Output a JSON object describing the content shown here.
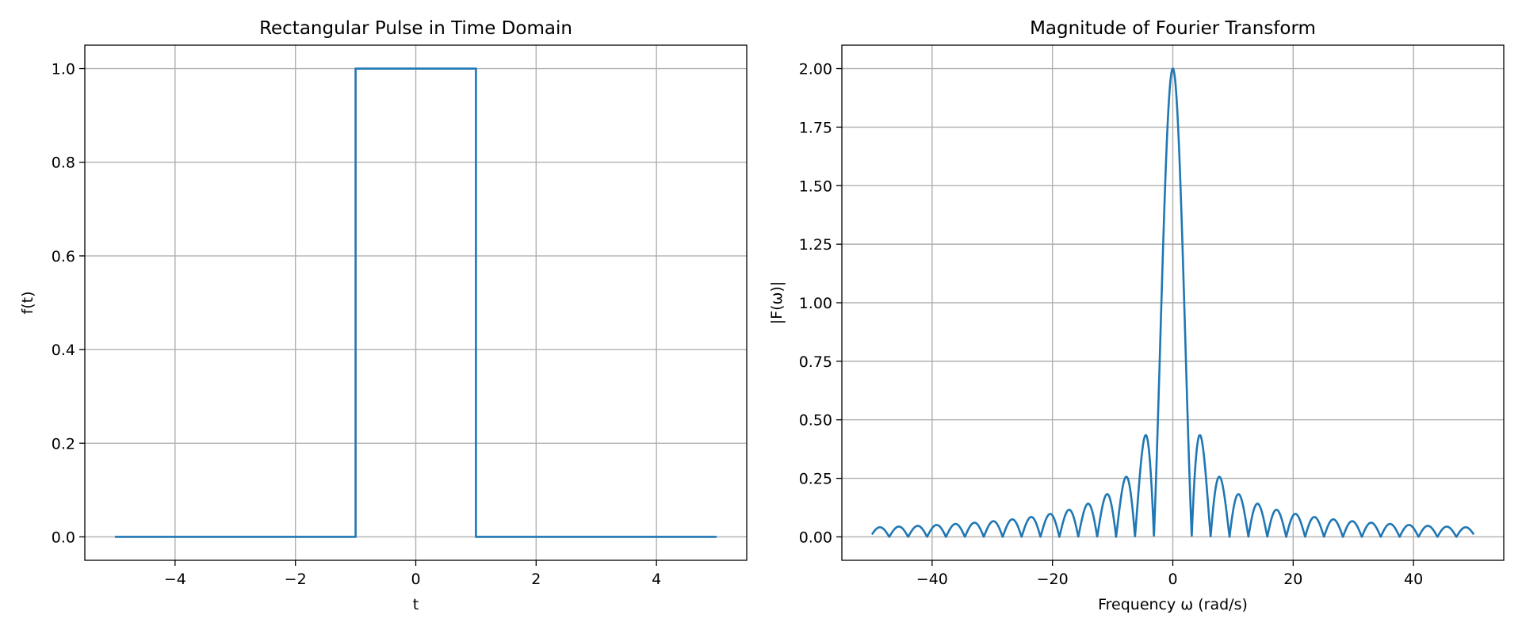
{
  "colors": {
    "series": "#1f77b4"
  },
  "chart_data": [
    {
      "type": "line",
      "title": "Rectangular Pulse in Time Domain",
      "xlabel": "t",
      "ylabel": "f(t)",
      "xlim": [
        -5.5,
        5.5
      ],
      "ylim": [
        -0.05,
        1.05
      ],
      "xticks": [
        -4,
        -2,
        0,
        2,
        4
      ],
      "xtick_labels": [
        "−4",
        "−2",
        "0",
        "2",
        "4"
      ],
      "yticks": [
        0.0,
        0.2,
        0.4,
        0.6,
        0.8,
        1.0
      ],
      "ytick_labels": [
        "0.0",
        "0.2",
        "0.4",
        "0.6",
        "0.8",
        "1.0"
      ],
      "grid": true,
      "series": [
        {
          "x": [
            -5,
            -1,
            -1,
            1,
            1,
            5
          ],
          "y": [
            0,
            0,
            1,
            1,
            0,
            0
          ]
        }
      ]
    },
    {
      "type": "line",
      "title": "Magnitude of Fourier Transform",
      "xlabel": "Frequency ω (rad/s)",
      "ylabel": "|F(ω)|",
      "xlim": [
        -55,
        55
      ],
      "ylim": [
        -0.1,
        2.1
      ],
      "xticks": [
        -40,
        -20,
        0,
        20,
        40
      ],
      "xtick_labels": [
        "−40",
        "−20",
        "0",
        "20",
        "40"
      ],
      "yticks": [
        0.0,
        0.25,
        0.5,
        0.75,
        1.0,
        1.25,
        1.5,
        1.75,
        2.0
      ],
      "ytick_labels": [
        "0.00",
        "0.25",
        "0.50",
        "0.75",
        "1.00",
        "1.25",
        "1.50",
        "1.75",
        "2.00"
      ],
      "grid": true,
      "series": [
        {
          "function": "|2 sin(ω)/ω|",
          "x_range": [
            -50,
            50
          ]
        }
      ]
    }
  ]
}
